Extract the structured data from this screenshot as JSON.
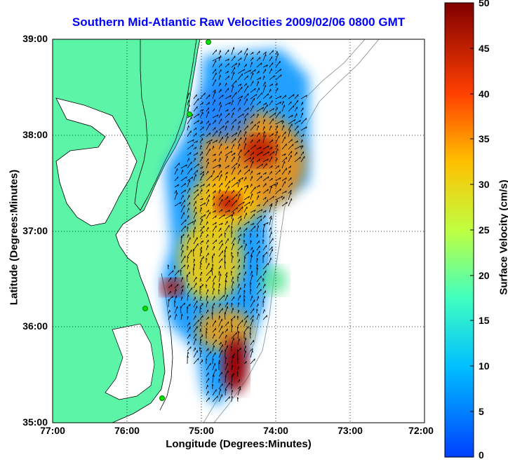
{
  "title": "Southern Mid-Atlantic Raw Velocities 2009/02/06 0800 GMT",
  "xlabel": "Longitude (Degrees:Minutes)",
  "ylabel": "Latitude (Degrees:Minutes)",
  "colorbar": {
    "label": "Surface Velocity (cm/s)",
    "ticks": [
      "0",
      "5",
      "10",
      "15",
      "20",
      "25",
      "30",
      "35",
      "40",
      "45",
      "50"
    ],
    "range": [
      0,
      50
    ],
    "colors": [
      "#0040ff",
      "#00c0ff",
      "#40ffc0",
      "#c0ff40",
      "#ffc000",
      "#ff4000",
      "#800000"
    ]
  },
  "axes": {
    "xticks": [
      "77:00",
      "76:00",
      "75:00",
      "74:00",
      "73:00",
      "72:00"
    ],
    "yticks": [
      "39:00",
      "38:00",
      "37:00",
      "36:00",
      "35:00"
    ],
    "grid": "dotted"
  },
  "colors": {
    "land": "#5cf5a8",
    "coast": "#000000",
    "bathymetry": "#a0a0a0",
    "station": "#00e000"
  }
}
